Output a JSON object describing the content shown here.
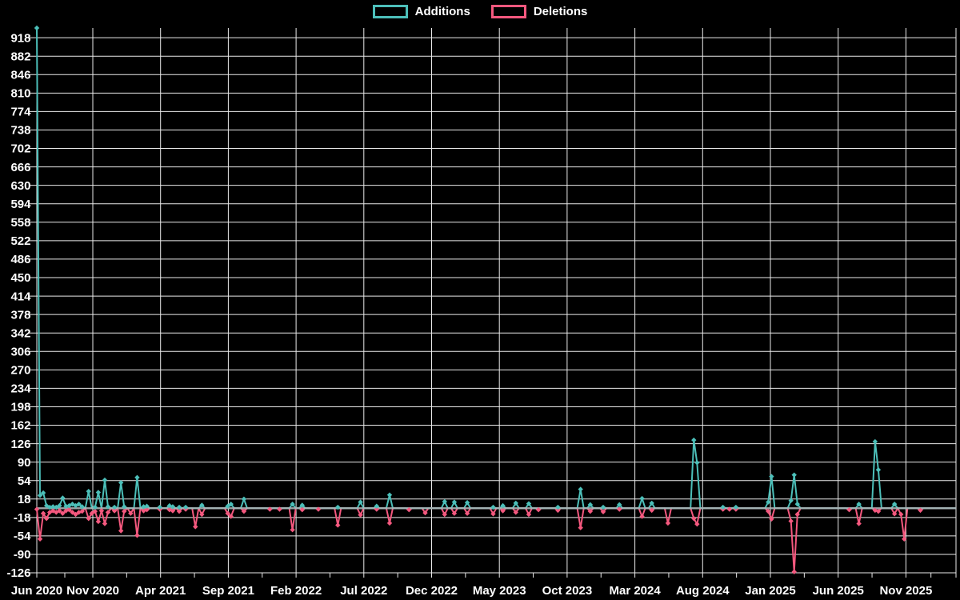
{
  "legend": {
    "items": [
      {
        "label": "Additions",
        "color": "#4CBFB9"
      },
      {
        "label": "Deletions",
        "color": "#F4587E"
      }
    ]
  },
  "colors": {
    "background": "#000000",
    "additions": "#4CBFB9",
    "deletions": "#F4587E",
    "gridline": "#EAEAEA",
    "zero_line": "#AEB4B6",
    "text": "#FFFFFF"
  },
  "chart_data": {
    "type": "line",
    "title": "",
    "xlabel": "",
    "ylabel": "",
    "legend_position": "top-center",
    "grid": true,
    "ylim": [
      -126,
      937
    ],
    "y_tick_step": 36,
    "y_tick_labels": [
      918,
      882,
      846,
      810,
      774,
      738,
      702,
      666,
      630,
      594,
      558,
      522,
      486,
      450,
      414,
      378,
      342,
      306,
      270,
      234,
      198,
      162,
      126,
      90,
      54,
      18,
      -18,
      -54,
      -90,
      -126
    ],
    "x_tick_labels": [
      "Jun 2020",
      "Nov 2020",
      "Apr 2021",
      "Sep 2021",
      "Feb 2022",
      "Jul 2022",
      "Dec 2022",
      "May 2023",
      "Oct 2023",
      "Mar 2024",
      "Aug 2024",
      "Jan 2025",
      "Jun 2025",
      "Nov 2025"
    ],
    "num_weeks": 285,
    "series": [
      {
        "name": "Additions",
        "color": "#4CBFB9",
        "default_value": 0
      },
      {
        "name": "Deletions",
        "color": "#F4587E",
        "default_value": 0
      }
    ],
    "events_format": [
      "week_index",
      "additions",
      "deletions"
    ],
    "events": [
      [
        0,
        937,
        -2
      ],
      [
        1,
        25,
        -60
      ],
      [
        2,
        30,
        -10
      ],
      [
        3,
        5,
        -20
      ],
      [
        4,
        2,
        -8
      ],
      [
        5,
        3,
        -5
      ],
      [
        6,
        2,
        -8
      ],
      [
        7,
        5,
        -5
      ],
      [
        8,
        20,
        -10
      ],
      [
        9,
        4,
        -5
      ],
      [
        10,
        5,
        -3
      ],
      [
        11,
        8,
        -8
      ],
      [
        12,
        5,
        -12
      ],
      [
        13,
        8,
        -8
      ],
      [
        14,
        3,
        -6
      ],
      [
        16,
        33,
        -20
      ],
      [
        17,
        0,
        -10
      ],
      [
        18,
        2,
        -6
      ],
      [
        19,
        31,
        -26
      ],
      [
        20,
        0,
        -5
      ],
      [
        21,
        55,
        -30
      ],
      [
        22,
        3,
        -8
      ],
      [
        24,
        2,
        -5
      ],
      [
        26,
        50,
        -44
      ],
      [
        27,
        3,
        -6
      ],
      [
        29,
        0,
        -10
      ],
      [
        31,
        60,
        -53
      ],
      [
        33,
        3,
        -5
      ],
      [
        34,
        4,
        -3
      ],
      [
        38,
        2,
        -2
      ],
      [
        41,
        5,
        -3
      ],
      [
        42,
        3,
        -5
      ],
      [
        44,
        2,
        -6
      ],
      [
        46,
        2,
        -2
      ],
      [
        49,
        0,
        -36
      ],
      [
        51,
        6,
        -12
      ],
      [
        59,
        4,
        -10
      ],
      [
        60,
        8,
        -16
      ],
      [
        64,
        18,
        -6
      ],
      [
        72,
        0,
        -2
      ],
      [
        75,
        0,
        -2
      ],
      [
        79,
        8,
        -42
      ],
      [
        82,
        6,
        -3
      ],
      [
        87,
        0,
        -2
      ],
      [
        93,
        2,
        -33
      ],
      [
        100,
        12,
        -13
      ],
      [
        105,
        4,
        -2
      ],
      [
        109,
        26,
        -29
      ],
      [
        115,
        0,
        -3
      ],
      [
        120,
        0,
        -9
      ],
      [
        126,
        13,
        -12
      ],
      [
        129,
        12,
        -10
      ],
      [
        133,
        11,
        -10
      ],
      [
        141,
        2,
        -11
      ],
      [
        144,
        5,
        -5
      ],
      [
        148,
        10,
        -8
      ],
      [
        152,
        9,
        -12
      ],
      [
        155,
        0,
        -3
      ],
      [
        161,
        2,
        -4
      ],
      [
        168,
        37,
        -38
      ],
      [
        171,
        7,
        -6
      ],
      [
        175,
        2,
        -7
      ],
      [
        180,
        7,
        -2
      ],
      [
        187,
        19,
        -16
      ],
      [
        190,
        10,
        -4
      ],
      [
        195,
        0,
        -29
      ],
      [
        203,
        133,
        -20
      ],
      [
        204,
        89,
        -31
      ],
      [
        212,
        2,
        -2
      ],
      [
        214,
        0,
        -2
      ],
      [
        216,
        2,
        -2
      ],
      [
        226,
        12,
        -6
      ],
      [
        227,
        62,
        -21
      ],
      [
        233,
        15,
        -25
      ],
      [
        234,
        65,
        -124
      ],
      [
        235,
        8,
        -12
      ],
      [
        251,
        0,
        -3
      ],
      [
        254,
        8,
        -30
      ],
      [
        259,
        130,
        -4
      ],
      [
        260,
        75,
        -6
      ],
      [
        265,
        8,
        -11
      ],
      [
        267,
        0,
        -12
      ],
      [
        268,
        0,
        -60
      ],
      [
        273,
        0,
        -4
      ]
    ]
  }
}
